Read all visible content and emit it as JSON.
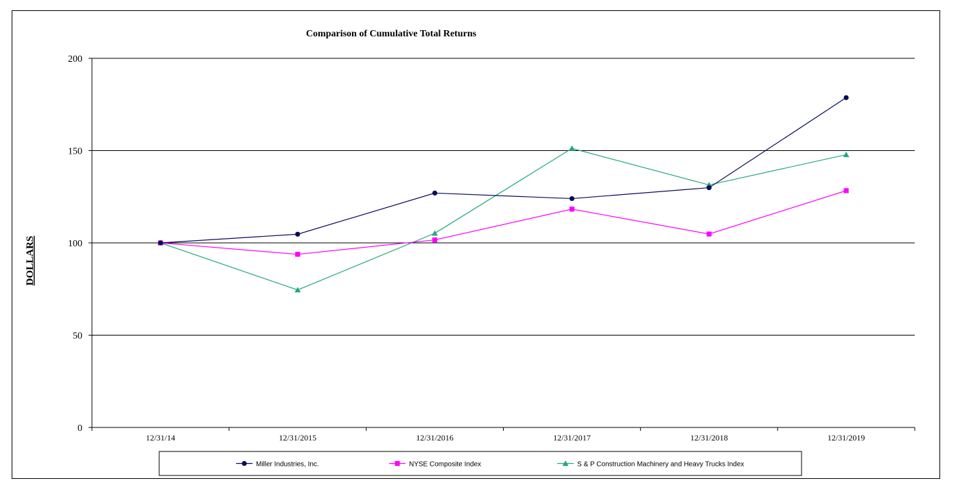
{
  "chart_data": {
    "type": "line",
    "title": "Comparison of Cumulative Total Returns",
    "ylabel": "DOLLARS",
    "xlabel": "",
    "ylim": [
      0,
      200
    ],
    "yticks": [
      0,
      50,
      100,
      150,
      200
    ],
    "grid": "horizontal",
    "categories": [
      "12/31/14",
      "12/31/2015",
      "12/31/2016",
      "12/31/2017",
      "12/31/2018",
      "12/31/2019"
    ],
    "legend_position": "bottom",
    "series": [
      {
        "name": "Miller Industries, Inc.",
        "marker": "circle",
        "color": "#0a0a5c",
        "values": [
          100,
          104.7,
          127,
          124,
          129.9,
          178.7
        ]
      },
      {
        "name": "NYSE Composite Index",
        "marker": "square",
        "color": "#ff00ff",
        "values": [
          100,
          93.8,
          101.6,
          118.3,
          104.8,
          128.3
        ]
      },
      {
        "name": "S & P Construction Machinery and Heavy Trucks Index",
        "marker": "triangle",
        "color": "#22aa77",
        "values": [
          100,
          74.5,
          105.2,
          151.2,
          131.4,
          147.8
        ]
      }
    ]
  }
}
